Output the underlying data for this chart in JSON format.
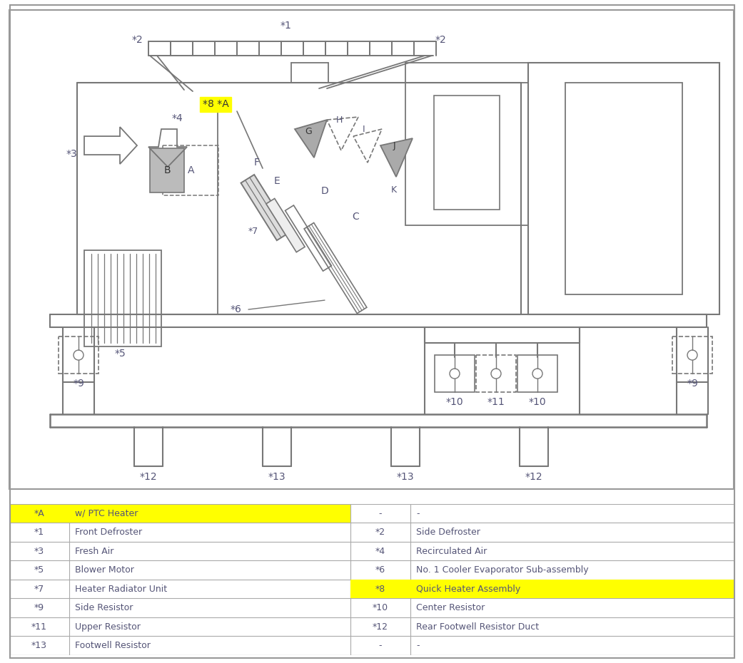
{
  "bg": "#ffffff",
  "lc": "#777777",
  "tc": "#555577",
  "yellow": "#ffff00",
  "gray_fill": "#aaaaaa",
  "table_rows": [
    {
      "lk": "*A",
      "lv": "w/ PTC Heater",
      "mk": "-",
      "rv": "-",
      "lk_hl": true,
      "lv_hl": true,
      "mk_hl": false,
      "rv_hl": false
    },
    {
      "lk": "*1",
      "lv": "Front Defroster",
      "mk": "*2",
      "rv": "Side Defroster",
      "lk_hl": false,
      "lv_hl": false,
      "mk_hl": false,
      "rv_hl": false
    },
    {
      "lk": "*3",
      "lv": "Fresh Air",
      "mk": "*4",
      "rv": "Recirculated Air",
      "lk_hl": false,
      "lv_hl": false,
      "mk_hl": false,
      "rv_hl": false
    },
    {
      "lk": "*5",
      "lv": "Blower Motor",
      "mk": "*6",
      "rv": "No. 1 Cooler Evaporator Sub-assembly",
      "lk_hl": false,
      "lv_hl": false,
      "mk_hl": false,
      "rv_hl": false
    },
    {
      "lk": "*7",
      "lv": "Heater Radiator Unit",
      "mk": "*8",
      "rv": "Quick Heater Assembly",
      "lk_hl": false,
      "lv_hl": false,
      "mk_hl": true,
      "rv_hl": true
    },
    {
      "lk": "*9",
      "lv": "Side Resistor",
      "mk": "*10",
      "rv": "Center Resistor",
      "lk_hl": false,
      "lv_hl": false,
      "mk_hl": false,
      "rv_hl": false
    },
    {
      "lk": "*11",
      "lv": "Upper Resistor",
      "mk": "*12",
      "rv": "Rear Footwell Resistor Duct",
      "lk_hl": false,
      "lv_hl": false,
      "mk_hl": false,
      "rv_hl": false
    },
    {
      "lk": "*13",
      "lv": "Footwell Resistor",
      "mk": "-",
      "rv": "-",
      "lk_hl": false,
      "lv_hl": false,
      "mk_hl": false,
      "rv_hl": false
    }
  ]
}
